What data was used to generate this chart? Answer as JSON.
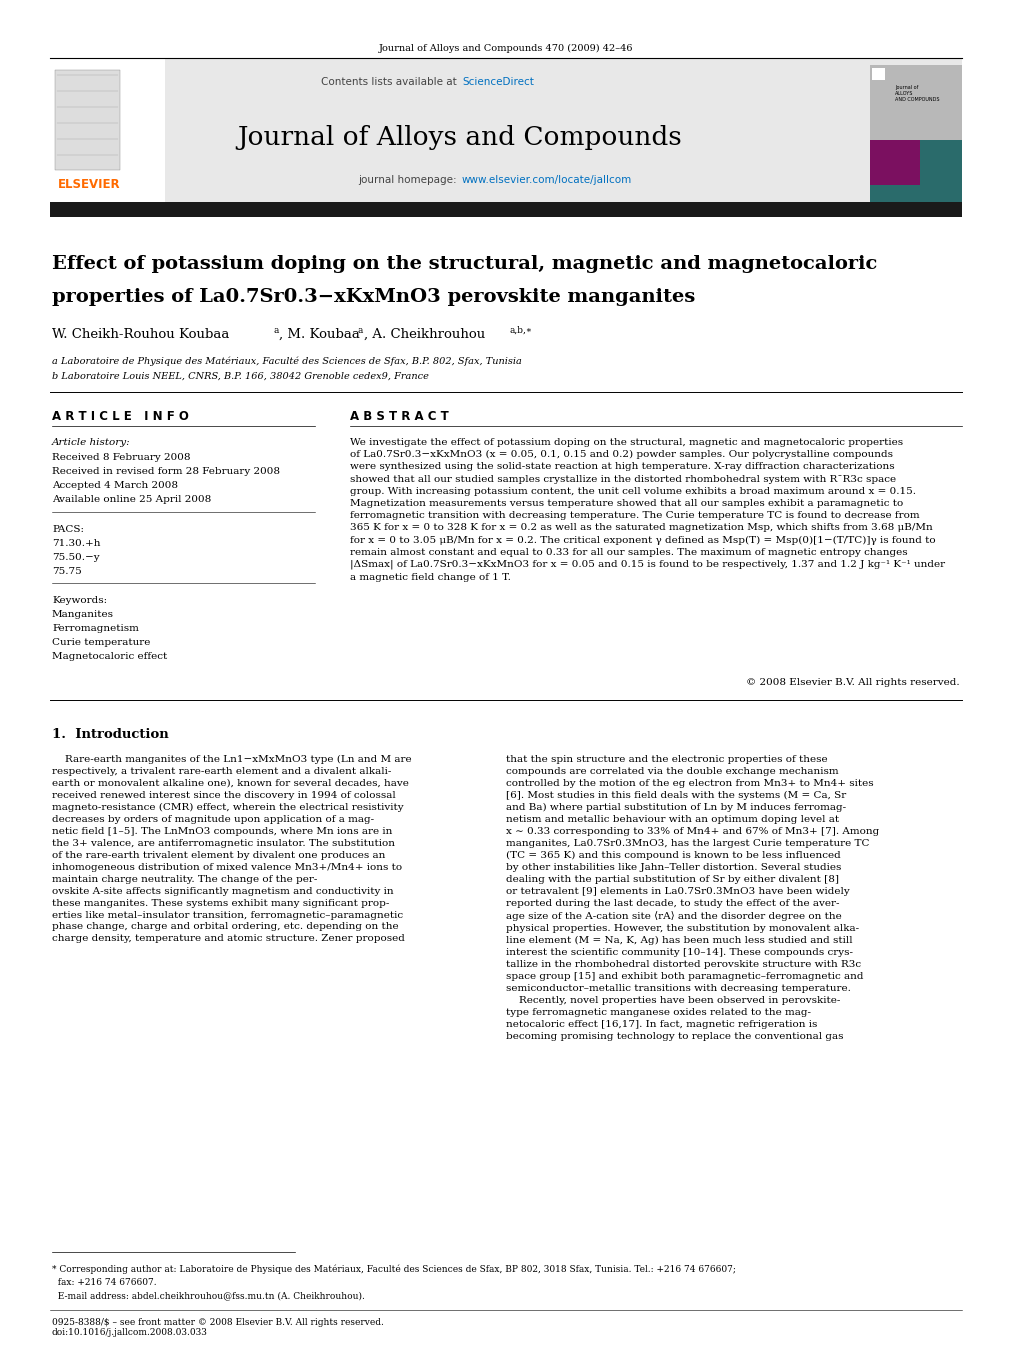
{
  "page_width": 9.92,
  "page_height": 13.23,
  "dpi": 100,
  "background": "#ffffff",
  "journal_ref": "Journal of Alloys and Compounds 470 (2009) 42–46",
  "contents_line": "Contents lists available at ",
  "sciencedirect_color": "#0070c0",
  "journal_name": "Journal of Alloys and Compounds",
  "homepage_text": "journal homepage: ",
  "homepage_url": "www.elsevier.com/locate/jallcom",
  "header_bg": "#e8e8e8",
  "dark_bar_color": "#1a1a1a",
  "title_line1": "Effect of potassium doping on the structural, magnetic and magnetocaloric",
  "title_line2": "properties of La0.7Sr0.3−xKxMnO3 perovskite manganites",
  "affil_a": "a Laboratoire de Physique des Matériaux, Faculté des Sciences de Sfax, B.P. 802, Sfax, Tunisia",
  "affil_b": "b Laboratoire Louis NEEL, CNRS, B.P. 166, 38042 Grenoble cedex9, France",
  "article_info_header": "A R T I C L E   I N F O",
  "abstract_header": "A B S T R A C T",
  "article_history_label": "Article history:",
  "received1": "Received 8 February 2008",
  "received2": "Received in revised form 28 February 2008",
  "accepted": "Accepted 4 March 2008",
  "available": "Available online 25 April 2008",
  "pacs_label": "PACS:",
  "pacs1": "71.30.+h",
  "pacs2": "75.50.−y",
  "pacs3": "75.75",
  "keywords_label": "Keywords:",
  "kw1": "Manganites",
  "kw2": "Ferromagnetism",
  "kw3": "Curie temperature",
  "kw4": "Magnetocaloric effect",
  "copyright": "© 2008 Elsevier B.V. All rights reserved.",
  "section1_title": "1.  Introduction",
  "footer_left": "0925-8388/$ – see front matter © 2008 Elsevier B.V. All rights reserved.",
  "footer_doi": "doi:10.1016/j.jallcom.2008.03.033",
  "footnote_corr": "* Corresponding author at: Laboratoire de Physique des Matériaux, Faculté des Sciences de Sfax, BP 802, 3018 Sfax, Tunisia. Tel.: +216 74 676607;",
  "footnote_fax": "  fax: +216 74 676607.",
  "footnote_email": "  E-mail address: abdel.cheikhrouhou@fss.mu.tn (A. Cheikhrouhou)."
}
